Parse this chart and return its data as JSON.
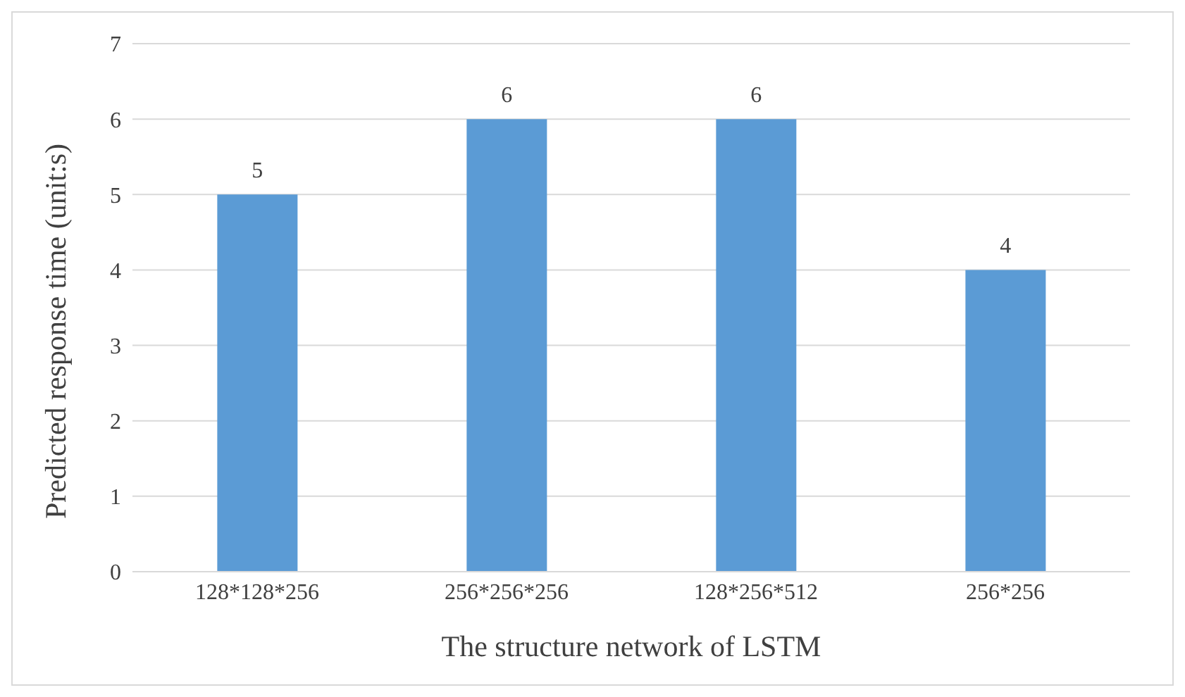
{
  "chart_data": {
    "type": "bar",
    "xlabel": "The structure network of LSTM",
    "ylabel": "Predicted response time (unit:s)",
    "categories": [
      "128*128*256",
      "256*256*256",
      "128*256*512",
      "256*256"
    ],
    "values": [
      5,
      6,
      6,
      4
    ],
    "color": "#5b9bd5",
    "ylim": [
      0,
      7
    ],
    "yticks": [
      0,
      1,
      2,
      3,
      4,
      5,
      6,
      7
    ],
    "grid": "y",
    "data_labels": true
  }
}
